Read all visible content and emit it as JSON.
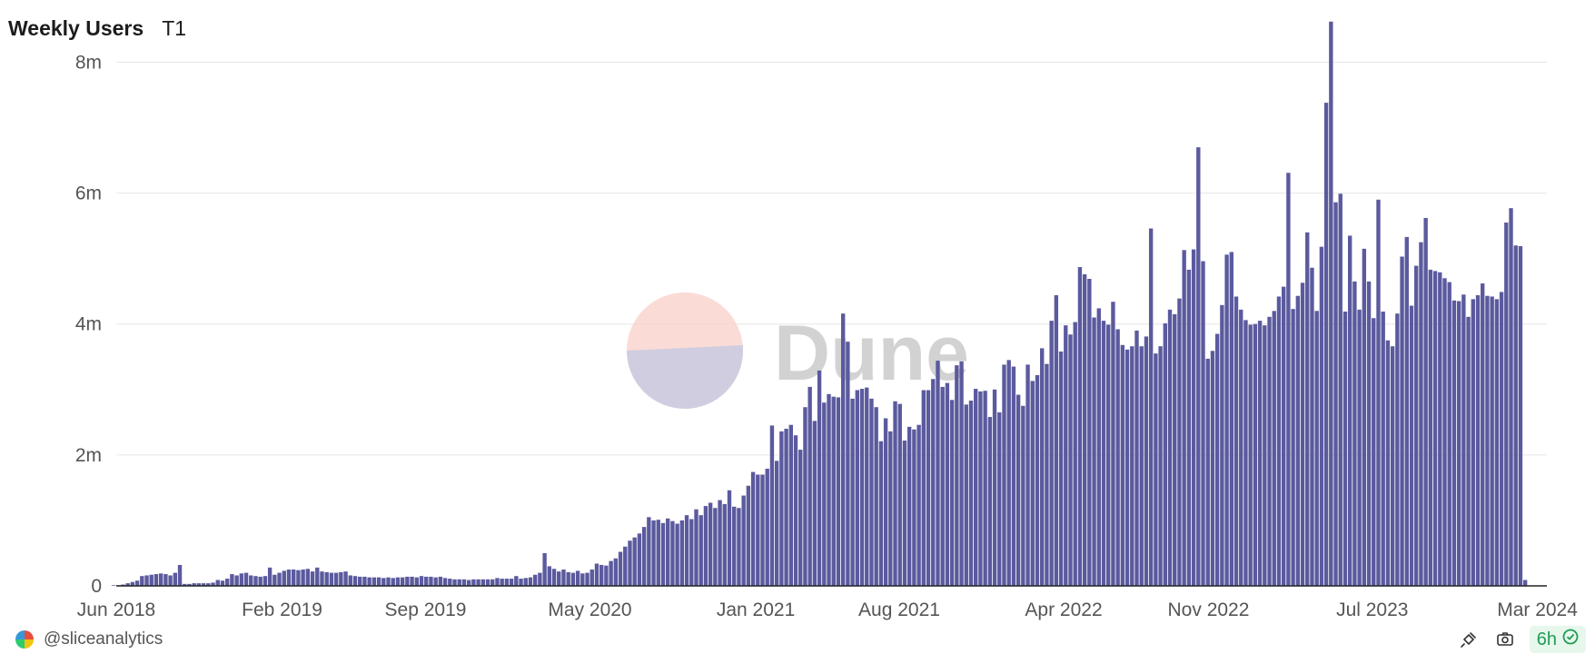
{
  "header": {
    "title": "Weekly Users",
    "subtitle": "T1"
  },
  "watermark": {
    "text": "Dune"
  },
  "footer": {
    "author": "@sliceanalytics",
    "freshness": "6h"
  },
  "icons": {
    "author_logo": "slice-logo-icon",
    "embed": "embed-icon",
    "camera": "camera-icon",
    "check": "check-circle-icon"
  },
  "colors": {
    "bar": "#5b5a9e",
    "grid": "#e6e6e6",
    "axis_text": "#555555",
    "fresh_bg": "#e7f7ec",
    "fresh_fg": "#1f9d55"
  },
  "chart_data": {
    "type": "bar",
    "title": "Weekly Users",
    "x_start": "2018-05-28",
    "x_interval": "1 week",
    "xlim": [
      "2018-06-01",
      "2024-03-15"
    ],
    "ylim": [
      0,
      8700000
    ],
    "yticks": [
      0,
      2000000,
      4000000,
      6000000,
      8000000
    ],
    "ytick_labels": [
      "0",
      "2m",
      "4m",
      "6m",
      "8m"
    ],
    "xticks": [
      "2018-06-01",
      "2019-02-01",
      "2019-09-01",
      "2020-05-01",
      "2021-01-01",
      "2021-08-01",
      "2022-04-01",
      "2022-11-01",
      "2023-07-01",
      "2024-03-01"
    ],
    "xtick_labels": [
      "Jun 2018",
      "Feb 2019",
      "Sep 2019",
      "May 2020",
      "Jan 2021",
      "Aug 2021",
      "Apr 2022",
      "Nov 2022",
      "Jul 2023",
      "Mar 2024"
    ],
    "grid": true,
    "values": [
      10000,
      10000,
      20000,
      40000,
      60000,
      80000,
      150000,
      160000,
      170000,
      180000,
      190000,
      180000,
      160000,
      200000,
      320000,
      30000,
      30000,
      40000,
      40000,
      40000,
      40000,
      50000,
      90000,
      80000,
      110000,
      180000,
      160000,
      190000,
      200000,
      160000,
      150000,
      140000,
      150000,
      280000,
      170000,
      200000,
      230000,
      250000,
      250000,
      240000,
      250000,
      260000,
      220000,
      280000,
      220000,
      210000,
      200000,
      200000,
      210000,
      220000,
      160000,
      150000,
      140000,
      140000,
      130000,
      130000,
      130000,
      120000,
      130000,
      120000,
      130000,
      130000,
      140000,
      140000,
      130000,
      150000,
      140000,
      140000,
      130000,
      140000,
      120000,
      110000,
      100000,
      100000,
      100000,
      90000,
      100000,
      100000,
      100000,
      100000,
      100000,
      120000,
      110000,
      110000,
      110000,
      150000,
      110000,
      120000,
      130000,
      170000,
      200000,
      500000,
      300000,
      260000,
      220000,
      250000,
      210000,
      200000,
      230000,
      190000,
      200000,
      250000,
      340000,
      320000,
      310000,
      380000,
      420000,
      520000,
      600000,
      690000,
      740000,
      800000,
      900000,
      1050000,
      1000000,
      1010000,
      960000,
      1030000,
      990000,
      950000,
      1000000,
      1080000,
      1020000,
      1170000,
      1080000,
      1220000,
      1270000,
      1190000,
      1310000,
      1250000,
      1460000,
      1210000,
      1190000,
      1380000,
      1530000,
      1740000,
      1700000,
      1700000,
      1790000,
      2450000,
      1910000,
      2360000,
      2400000,
      2460000,
      2300000,
      2080000,
      2730000,
      3040000,
      2520000,
      3290000,
      2800000,
      2930000,
      2890000,
      2880000,
      4160000,
      3730000,
      2860000,
      2990000,
      3010000,
      3030000,
      2860000,
      2730000,
      2210000,
      2560000,
      2360000,
      2820000,
      2780000,
      2220000,
      2430000,
      2390000,
      2460000,
      2990000,
      2990000,
      3160000,
      3440000,
      3040000,
      3100000,
      2840000,
      3370000,
      3430000,
      2770000,
      2830000,
      3010000,
      2970000,
      2980000,
      2580000,
      3000000,
      2650000,
      3380000,
      3450000,
      3350000,
      2920000,
      2750000,
      3380000,
      3130000,
      3220000,
      3630000,
      3390000,
      4050000,
      4440000,
      3580000,
      3980000,
      3840000,
      4030000,
      4870000,
      4760000,
      4690000,
      4100000,
      4240000,
      4050000,
      3990000,
      4340000,
      3920000,
      3680000,
      3610000,
      3660000,
      3900000,
      3660000,
      3810000,
      5460000,
      3550000,
      3660000,
      4010000,
      4220000,
      4150000,
      4390000,
      5130000,
      4830000,
      5140000,
      6700000,
      4960000,
      3470000,
      3590000,
      3850000,
      4290000,
      5060000,
      5100000,
      4420000,
      4220000,
      4060000,
      3990000,
      4000000,
      4050000,
      3980000,
      4110000,
      4200000,
      4420000,
      4570000,
      6310000,
      4230000,
      4430000,
      4630000,
      5400000,
      4860000,
      4200000,
      5180000,
      7380000,
      8620000,
      5860000,
      5990000,
      4190000,
      5350000,
      4650000,
      4220000,
      5150000,
      4650000,
      4090000,
      5900000,
      4190000,
      3750000,
      3660000,
      4160000,
      5030000,
      5330000,
      4280000,
      4890000,
      5250000,
      5620000,
      4830000,
      4810000,
      4790000,
      4700000,
      4640000,
      4360000,
      4350000,
      4450000,
      4110000,
      4380000,
      4440000,
      4620000,
      4430000,
      4420000,
      4380000,
      4490000,
      5550000,
      5770000,
      5200000,
      5190000,
      90000
    ]
  }
}
